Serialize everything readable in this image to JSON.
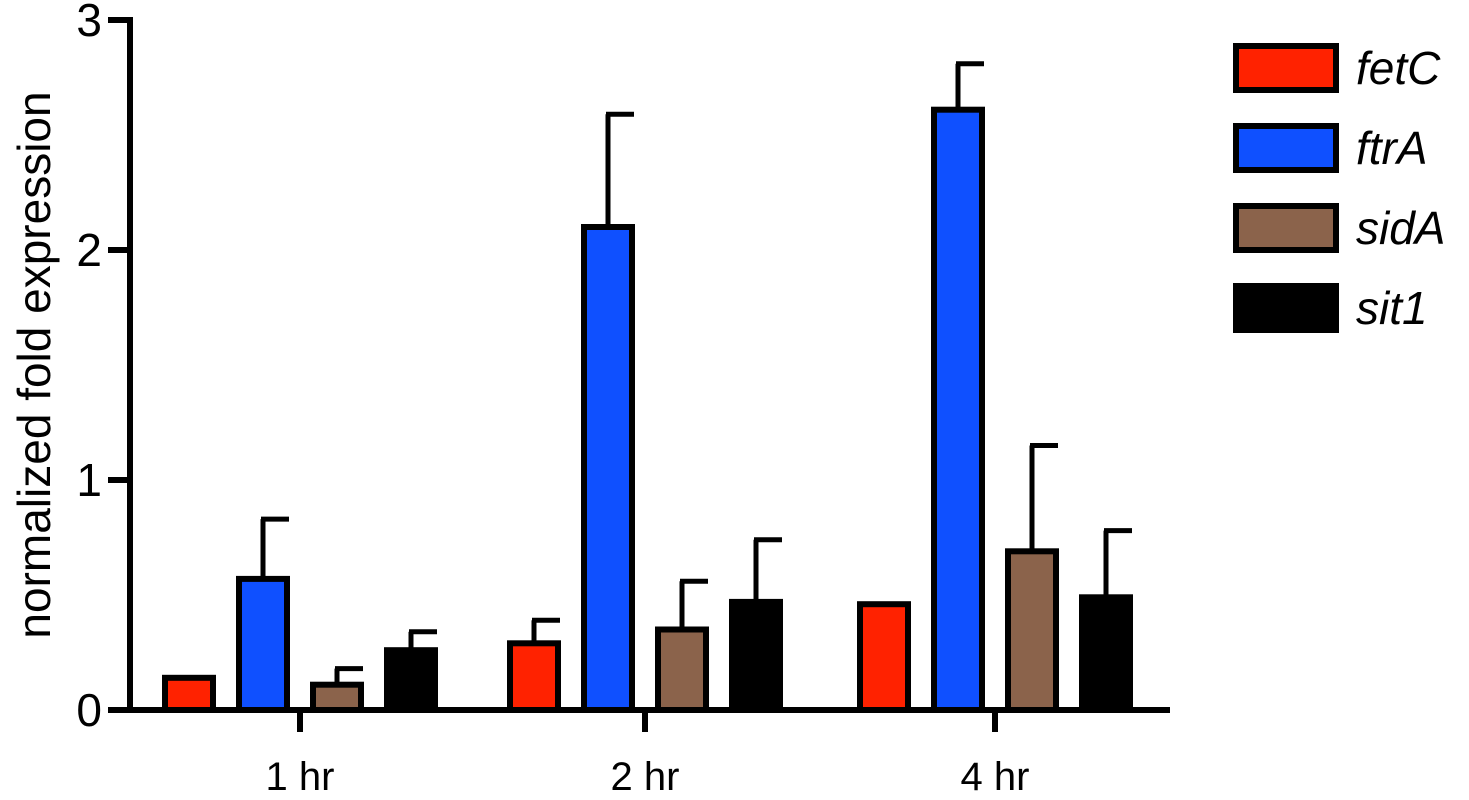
{
  "chart_data": {
    "type": "bar",
    "title": "",
    "xlabel": "",
    "ylabel": "normalized fold expression",
    "ylim": [
      0,
      3
    ],
    "yticks": [
      "0",
      "1",
      "2",
      "3"
    ],
    "categories": [
      "1 hr",
      "2 hr",
      "4 hr"
    ],
    "legend_position": "top-right",
    "grid": false,
    "series": [
      {
        "name": "fetC",
        "color": "#ff2200",
        "values": [
          0.14,
          0.29,
          0.46
        ],
        "errors": [
          0,
          0.1,
          0
        ]
      },
      {
        "name": "ftrA",
        "color": "#0f50ff",
        "values": [
          0.57,
          2.1,
          2.61
        ],
        "errors": [
          0.26,
          0.49,
          0.2
        ]
      },
      {
        "name": "sidA",
        "color": "#8b634b",
        "values": [
          0.11,
          0.35,
          0.69
        ],
        "errors": [
          0.07,
          0.21,
          0.46
        ]
      },
      {
        "name": "sit1",
        "color": "#000000",
        "values": [
          0.26,
          0.47,
          0.49
        ],
        "errors": [
          0.08,
          0.27,
          0.29
        ]
      }
    ]
  }
}
